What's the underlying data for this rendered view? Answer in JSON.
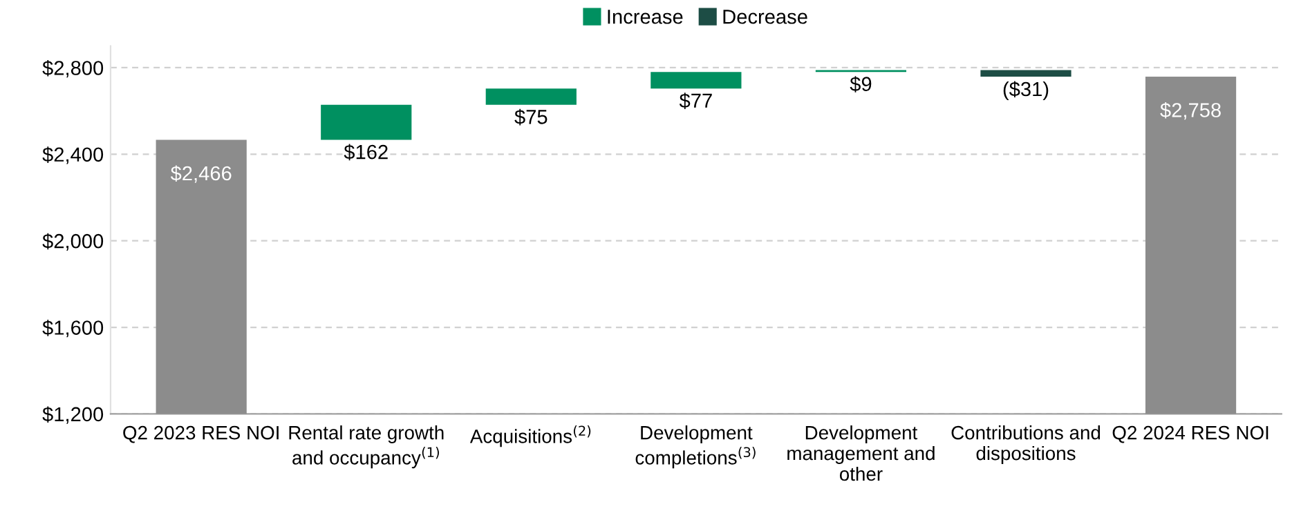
{
  "chart_data": {
    "type": "bar",
    "categories": [
      "Q2 2023 RES NOI",
      "Rental rate growth\nand occupancy$^{(1)}$",
      "Acquisitions$^{(2)}$",
      "Development\ncompletions$^{(3)}$",
      "Development\nmanagement and\nother",
      "Contributions and\ndispositions",
      "Q2 2024 RES NOI"
    ],
    "series": [
      {
        "color": "#8c8c8c",
        "values": [
          2466,
          null,
          null,
          null,
          null,
          null,
          2758
        ],
        "value_labels": [
          "$2,466",
          null,
          null,
          null,
          null,
          null,
          "$2,758"
        ]
      },
      {
        "name": "Increase",
        "color": "#009060",
        "values": [
          null,
          162,
          75,
          77,
          9,
          null,
          null
        ],
        "base": [
          null,
          2466,
          2628,
          2703,
          2780,
          null,
          null
        ],
        "value_labels": [
          null,
          "$162",
          "$75",
          "$77",
          "$9",
          null,
          null
        ]
      },
      {
        "name": "Decrease",
        "color": "#1d4d45",
        "values": [
          null,
          null,
          null,
          null,
          null,
          -31,
          null
        ],
        "base": [
          null,
          null,
          null,
          null,
          null,
          2789,
          null
        ],
        "value_labels": [
          null,
          null,
          null,
          null,
          null,
          "($31)",
          null
        ]
      }
    ],
    "ylim": [
      1200,
      2900
    ],
    "yticks": [
      {
        "value": 1200,
        "label": "$1,200"
      },
      {
        "value": 1600,
        "label": "$1,600"
      },
      {
        "value": 2000,
        "label": "$2,000"
      },
      {
        "value": 2400,
        "label": "$2,400"
      },
      {
        "value": 2800,
        "label": "$2,800"
      }
    ],
    "grid": "y",
    "legend": "top"
  }
}
